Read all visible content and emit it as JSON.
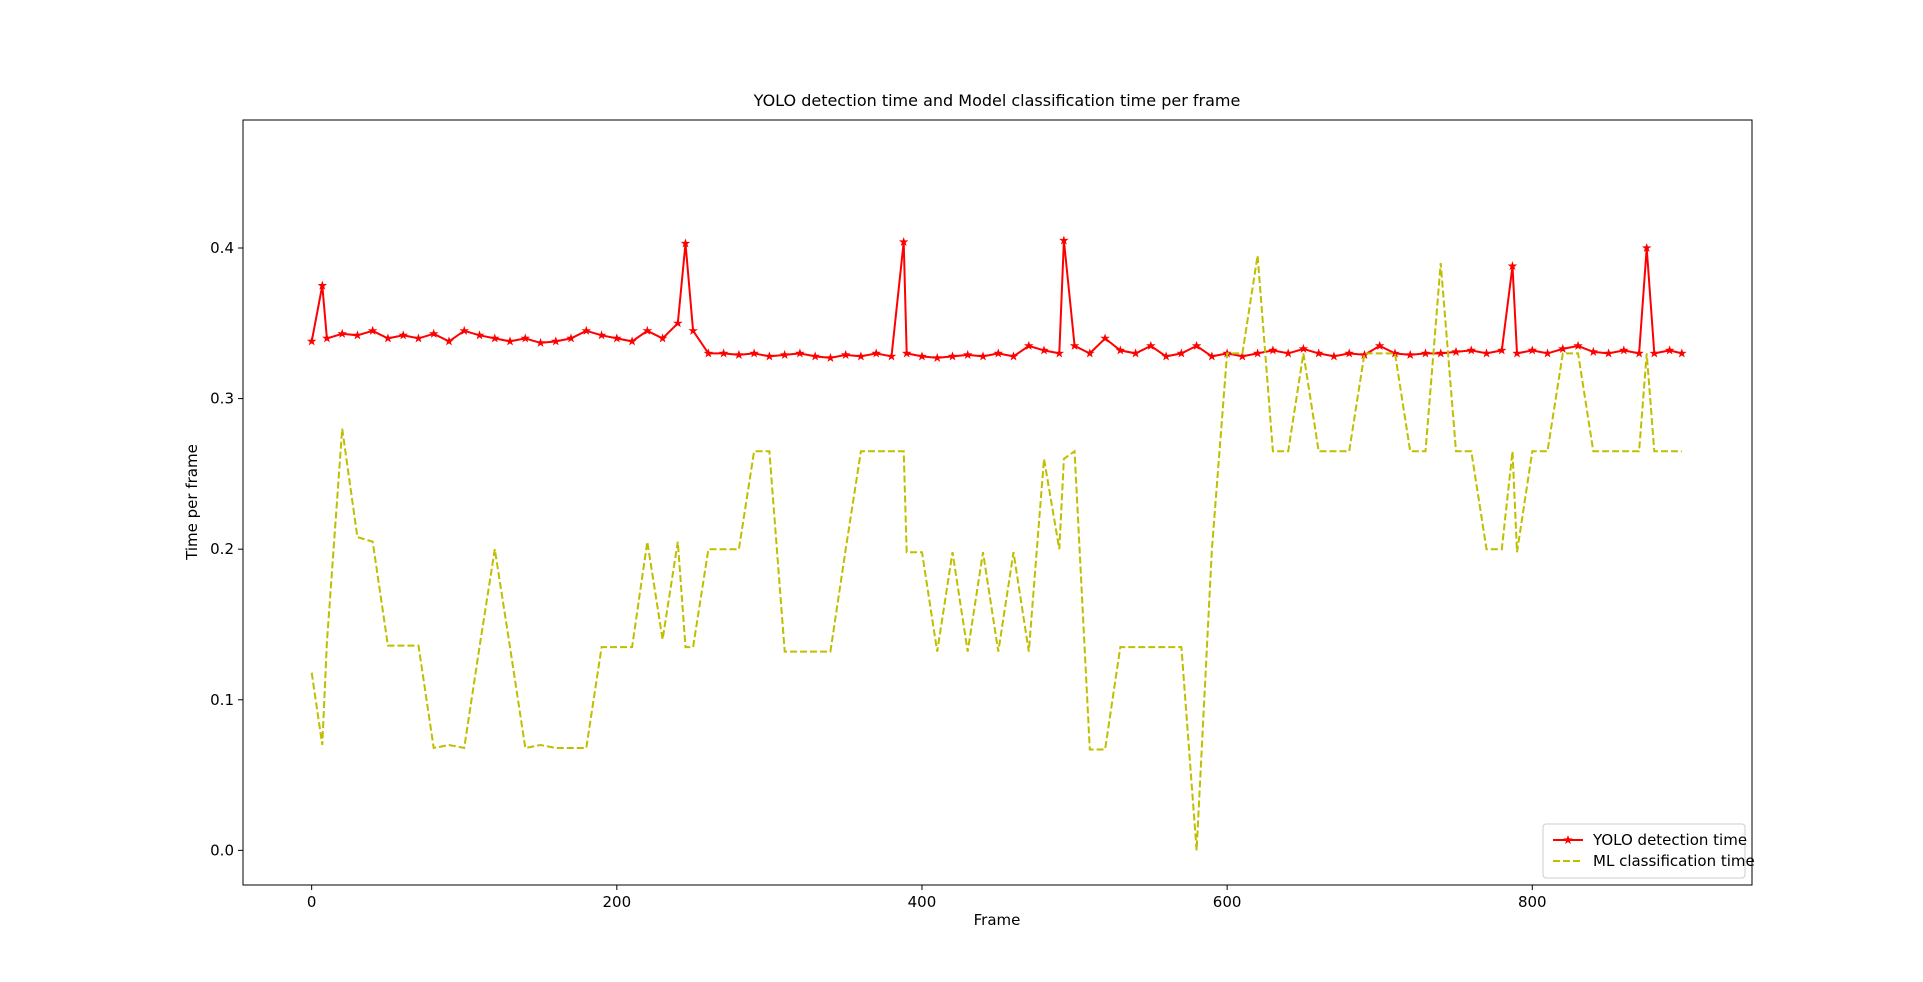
{
  "chart_data": {
    "type": "line",
    "title": "YOLO detection time and Model classification time per frame",
    "x_label": "Frame",
    "y_label": "Time per frame",
    "x": [
      0,
      7,
      10,
      20,
      30,
      40,
      50,
      60,
      70,
      80,
      90,
      100,
      110,
      120,
      130,
      140,
      150,
      160,
      170,
      180,
      190,
      200,
      210,
      220,
      230,
      240,
      245,
      250,
      260,
      270,
      280,
      290,
      300,
      310,
      320,
      330,
      340,
      350,
      360,
      370,
      380,
      388,
      390,
      400,
      410,
      420,
      430,
      440,
      450,
      460,
      470,
      480,
      490,
      493,
      500,
      510,
      520,
      530,
      540,
      550,
      560,
      570,
      580,
      590,
      600,
      610,
      620,
      630,
      640,
      650,
      660,
      670,
      680,
      690,
      700,
      710,
      720,
      730,
      740,
      750,
      760,
      770,
      780,
      787,
      790,
      800,
      810,
      820,
      830,
      840,
      850,
      860,
      870,
      875,
      880,
      890,
      898
    ],
    "series": [
      {
        "name": "YOLO detection time",
        "color": "#ff0000",
        "linestyle": "solid",
        "marker": "star",
        "values": [
          0.338,
          0.375,
          0.34,
          0.343,
          0.342,
          0.345,
          0.34,
          0.342,
          0.34,
          0.343,
          0.338,
          0.345,
          0.342,
          0.34,
          0.338,
          0.34,
          0.337,
          0.338,
          0.34,
          0.345,
          0.342,
          0.34,
          0.338,
          0.345,
          0.34,
          0.35,
          0.403,
          0.345,
          0.33,
          0.33,
          0.329,
          0.33,
          0.328,
          0.329,
          0.33,
          0.328,
          0.327,
          0.329,
          0.328,
          0.33,
          0.328,
          0.404,
          0.33,
          0.328,
          0.327,
          0.328,
          0.329,
          0.328,
          0.33,
          0.328,
          0.335,
          0.332,
          0.33,
          0.405,
          0.335,
          0.33,
          0.34,
          0.332,
          0.33,
          0.335,
          0.328,
          0.33,
          0.335,
          0.328,
          0.33,
          0.328,
          0.33,
          0.332,
          0.33,
          0.333,
          0.33,
          0.328,
          0.33,
          0.329,
          0.335,
          0.33,
          0.329,
          0.33,
          0.33,
          0.331,
          0.332,
          0.33,
          0.332,
          0.388,
          0.33,
          0.332,
          0.33,
          0.333,
          0.335,
          0.331,
          0.33,
          0.332,
          0.33,
          0.4,
          0.33,
          0.332,
          0.33
        ]
      },
      {
        "name": "ML classification time",
        "color": "#bfbf00",
        "linestyle": "dashed",
        "marker": "none",
        "values": [
          0.118,
          0.07,
          0.138,
          0.28,
          0.208,
          0.205,
          0.136,
          0.136,
          0.136,
          0.068,
          0.07,
          0.068,
          0.135,
          0.2,
          0.135,
          0.068,
          0.07,
          0.068,
          0.068,
          0.068,
          0.135,
          0.135,
          0.135,
          0.205,
          0.14,
          0.205,
          0.135,
          0.135,
          0.2,
          0.2,
          0.2,
          0.265,
          0.265,
          0.132,
          0.132,
          0.132,
          0.132,
          0.2,
          0.265,
          0.265,
          0.265,
          0.265,
          0.198,
          0.198,
          0.132,
          0.198,
          0.132,
          0.198,
          0.132,
          0.198,
          0.132,
          0.26,
          0.2,
          0.26,
          0.265,
          0.067,
          0.067,
          0.135,
          0.135,
          0.135,
          0.135,
          0.135,
          0.0,
          0.2,
          0.33,
          0.33,
          0.395,
          0.265,
          0.265,
          0.33,
          0.265,
          0.265,
          0.265,
          0.33,
          0.33,
          0.33,
          0.265,
          0.265,
          0.39,
          0.265,
          0.265,
          0.2,
          0.2,
          0.265,
          0.198,
          0.265,
          0.265,
          0.33,
          0.33,
          0.265,
          0.265,
          0.265,
          0.265,
          0.33,
          0.265,
          0.265,
          0.265
        ]
      }
    ],
    "xlim": [
      -45,
      944
    ],
    "ylim": [
      -0.023,
      0.485
    ],
    "xticks": [
      0,
      200,
      400,
      600,
      800
    ],
    "yticks": [
      {
        "value": 0,
        "label": "0.0"
      },
      0.1,
      0.2,
      0.3,
      0.4
    ],
    "grid": false,
    "legend": "lower right"
  }
}
